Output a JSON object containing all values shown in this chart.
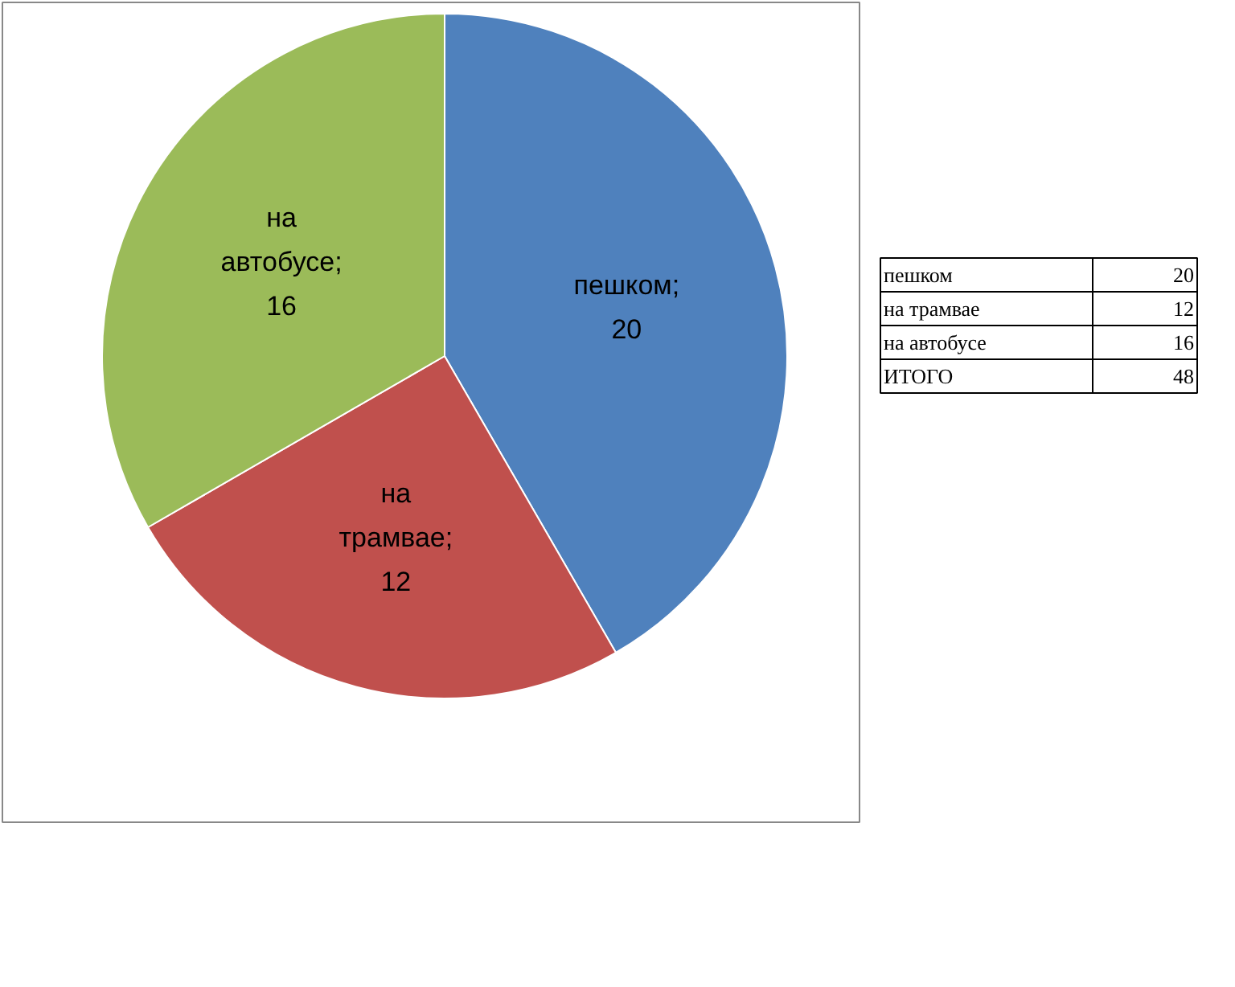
{
  "chart_data": {
    "type": "pie",
    "values": [
      20,
      12,
      16
    ],
    "colors": [
      "#4f81bd",
      "#c0504d",
      "#9bbb59"
    ],
    "value_labels": [
      "пешком; 20",
      "на трамвае; 12",
      "на автобусе; 16"
    ],
    "annotations": [
      "пешком",
      "20",
      "на трамвае",
      "12",
      "на автобусе",
      "16",
      "ИТОГО",
      "48"
    ]
  }
}
